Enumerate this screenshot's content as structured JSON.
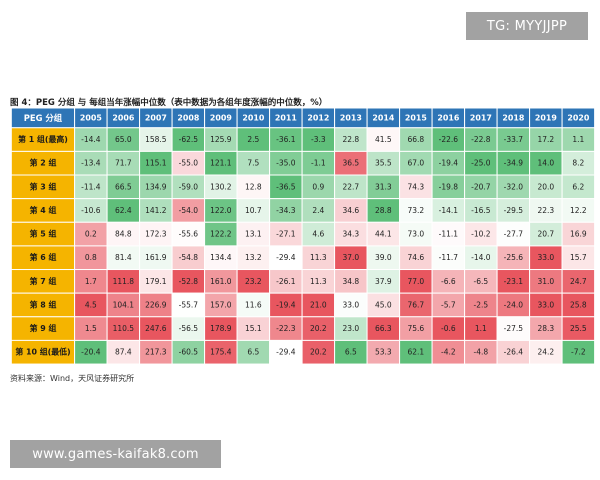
{
  "watermark_top": "TG: MYYJJPP",
  "watermark_bottom": "www.games-kaifak8.com",
  "figure_title": "图 4：PEG 分组 与 每组当年涨幅中位数（表中数据为各组年度涨幅的中位数，%）",
  "source_note": "资料来源：Wind，天风证券研究所",
  "colors": {
    "header_bg": "#2e75b6",
    "header_text": "#ffffff",
    "rowlabel_bg": "#f5b400",
    "rowlabel_text": "#1a1a1a",
    "grid": "#ffffff",
    "high": "#e8565f",
    "mid": "#ffffff",
    "low": "#5fbf7a"
  },
  "chart_data": {
    "type": "heatmap",
    "corner_label": "PEG 分组",
    "columns": [
      "2005",
      "2006",
      "2007",
      "2008",
      "2009",
      "2010",
      "2011",
      "2012",
      "2013",
      "2014",
      "2015",
      "2016",
      "2017",
      "2018",
      "2019",
      "2020"
    ],
    "rows": [
      {
        "label": "第 1 组(最高)",
        "values": [
          -14.4,
          65.0,
          158.5,
          -62.5,
          125.9,
          2.5,
          -36.1,
          -3.3,
          22.8,
          41.5,
          66.8,
          -22.6,
          -22.8,
          -33.7,
          17.2,
          1.1
        ]
      },
      {
        "label": "第 2 组",
        "values": [
          -13.4,
          71.7,
          115.1,
          -55.0,
          121.1,
          7.5,
          -35.0,
          -1.1,
          36.5,
          35.5,
          67.0,
          -19.4,
          -25.0,
          -34.9,
          14.0,
          8.2
        ]
      },
      {
        "label": "第 3 组",
        "values": [
          -11.4,
          66.5,
          134.9,
          -59.0,
          130.2,
          12.8,
          -36.5,
          0.9,
          22.7,
          31.3,
          74.3,
          -19.8,
          -20.7,
          -32.0,
          20.0,
          6.2
        ]
      },
      {
        "label": "第 4 组",
        "values": [
          -10.6,
          62.4,
          141.2,
          -54.0,
          122.0,
          10.7,
          -34.3,
          2.4,
          34.6,
          28.8,
          73.2,
          -14.1,
          -16.5,
          -29.5,
          22.3,
          12.2
        ]
      },
      {
        "label": "第 5 组",
        "values": [
          0.2,
          84.8,
          172.3,
          -55.6,
          122.2,
          13.1,
          -27.1,
          4.6,
          34.3,
          44.1,
          73.0,
          -11.1,
          -10.2,
          -27.7,
          20.7,
          16.9
        ]
      },
      {
        "label": "第 6 组",
        "values": [
          0.8,
          81.4,
          161.9,
          -54.8,
          134.4,
          13.2,
          -29.4,
          11.3,
          37.0,
          39.0,
          74.6,
          -11.7,
          -14.0,
          -25.6,
          33.0,
          15.7
        ]
      },
      {
        "label": "第 7 组",
        "values": [
          1.7,
          111.8,
          179.1,
          -52.8,
          161.0,
          23.2,
          -26.1,
          11.3,
          34.8,
          37.9,
          77.0,
          -6.6,
          -6.5,
          -23.1,
          31.0,
          24.7
        ]
      },
      {
        "label": "第 8 组",
        "values": [
          4.5,
          104.1,
          226.9,
          -55.7,
          157.0,
          11.6,
          -19.4,
          21.0,
          33.0,
          45.0,
          76.7,
          -5.7,
          -2.5,
          -24.0,
          33.0,
          25.8
        ]
      },
      {
        "label": "第 9 组",
        "values": [
          1.5,
          110.5,
          247.6,
          -56.5,
          178.9,
          15.1,
          -22.3,
          20.2,
          23.0,
          66.3,
          75.6,
          -0.6,
          1.1,
          -27.5,
          28.3,
          25.5
        ]
      },
      {
        "label": "第 10 组(最低)",
        "values": [
          -20.4,
          87.4,
          217.3,
          -60.5,
          175.4,
          6.5,
          -29.4,
          20.2,
          6.5,
          53.3,
          62.1,
          -4.2,
          -4.8,
          -26.4,
          24.2,
          -7.2
        ]
      }
    ],
    "color_scale": "per-column (green = low, white = middle, red = high)"
  }
}
